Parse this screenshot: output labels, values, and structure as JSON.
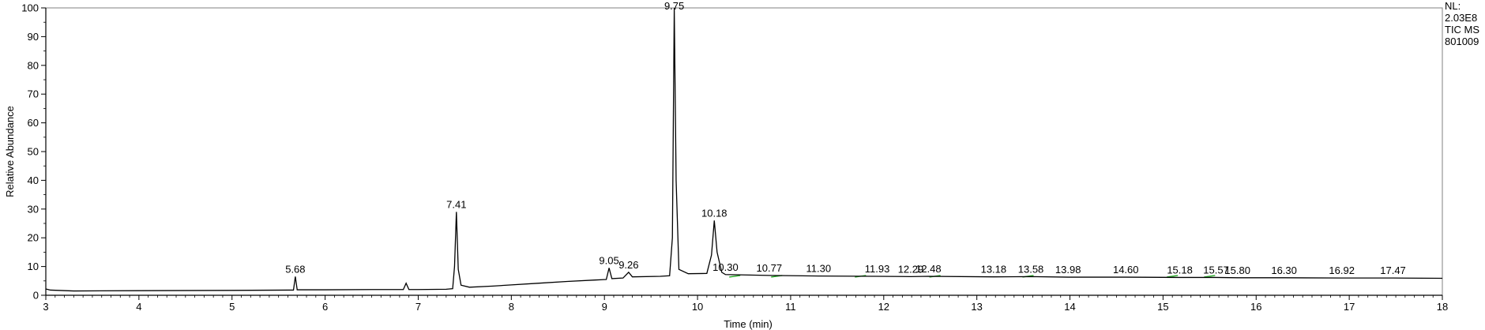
{
  "chart_data": {
    "type": "line",
    "xlabel": "Time (min)",
    "ylabel": "Relative Abundance",
    "xlim": [
      3,
      18
    ],
    "ylim": [
      0,
      100
    ],
    "x_ticks": [
      3,
      4,
      5,
      6,
      7,
      8,
      9,
      10,
      11,
      12,
      13,
      14,
      15,
      16,
      17,
      18
    ],
    "y_ticks": [
      0,
      10,
      20,
      30,
      40,
      50,
      60,
      70,
      80,
      90,
      100
    ],
    "info": [
      "NL:",
      "2.03E8",
      "TIC  MS",
      "801009"
    ],
    "series": [
      {
        "points": [
          [
            3.0,
            2.2
          ],
          [
            3.05,
            1.8
          ],
          [
            3.3,
            1.5
          ],
          [
            4.0,
            1.6
          ],
          [
            5.0,
            1.7
          ],
          [
            5.6,
            1.8
          ],
          [
            5.66,
            1.8
          ],
          [
            5.68,
            6.5
          ],
          [
            5.7,
            1.9
          ],
          [
            6.0,
            1.9
          ],
          [
            6.5,
            2.0
          ],
          [
            6.84,
            2.0
          ],
          [
            6.87,
            4.2
          ],
          [
            6.9,
            2.0
          ],
          [
            7.0,
            2.0
          ],
          [
            7.3,
            2.1
          ],
          [
            7.37,
            2.3
          ],
          [
            7.39,
            10.0
          ],
          [
            7.41,
            29.0
          ],
          [
            7.43,
            9.0
          ],
          [
            7.46,
            3.5
          ],
          [
            7.55,
            2.8
          ],
          [
            7.8,
            3.2
          ],
          [
            8.0,
            3.6
          ],
          [
            8.3,
            4.2
          ],
          [
            8.6,
            4.8
          ],
          [
            8.9,
            5.3
          ],
          [
            9.02,
            5.5
          ],
          [
            9.05,
            9.5
          ],
          [
            9.08,
            5.8
          ],
          [
            9.2,
            6.0
          ],
          [
            9.26,
            8.0
          ],
          [
            9.3,
            6.4
          ],
          [
            9.6,
            6.6
          ],
          [
            9.7,
            6.8
          ],
          [
            9.73,
            20.0
          ],
          [
            9.75,
            100.0
          ],
          [
            9.77,
            40.0
          ],
          [
            9.8,
            9.0
          ],
          [
            9.9,
            7.5
          ],
          [
            10.1,
            7.6
          ],
          [
            10.15,
            14.0
          ],
          [
            10.18,
            26.0
          ],
          [
            10.21,
            15.0
          ],
          [
            10.26,
            8.0
          ],
          [
            10.3,
            7.2
          ],
          [
            10.77,
            6.9
          ],
          [
            11.3,
            6.7
          ],
          [
            11.93,
            6.6
          ],
          [
            12.29,
            6.5
          ],
          [
            12.48,
            6.6
          ],
          [
            13.18,
            6.4
          ],
          [
            13.58,
            6.5
          ],
          [
            13.98,
            6.3
          ],
          [
            14.6,
            6.3
          ],
          [
            15.18,
            6.2
          ],
          [
            15.57,
            6.2
          ],
          [
            15.8,
            6.1
          ],
          [
            16.3,
            6.1
          ],
          [
            16.92,
            6.0
          ],
          [
            17.47,
            6.0
          ],
          [
            18.0,
            5.9
          ]
        ]
      }
    ],
    "peak_labels": [
      {
        "x": 5.68,
        "y": 6.5,
        "label": "5.68"
      },
      {
        "x": 7.41,
        "y": 29.0,
        "label": "7.41"
      },
      {
        "x": 9.05,
        "y": 9.5,
        "label": "9.05"
      },
      {
        "x": 9.26,
        "y": 8.0,
        "label": "9.26"
      },
      {
        "x": 9.75,
        "y": 100.0,
        "label": "9.75"
      },
      {
        "x": 10.18,
        "y": 26.0,
        "label": "10.18"
      },
      {
        "x": 10.3,
        "y": 7.2,
        "label": "10.30"
      },
      {
        "x": 10.77,
        "y": 6.9,
        "label": "10.77"
      },
      {
        "x": 11.3,
        "y": 6.7,
        "label": "11.30"
      },
      {
        "x": 11.93,
        "y": 6.6,
        "label": "11.93"
      },
      {
        "x": 12.29,
        "y": 6.5,
        "label": "12.29"
      },
      {
        "x": 12.48,
        "y": 6.6,
        "label": "12.48"
      },
      {
        "x": 13.18,
        "y": 6.4,
        "label": "13.18"
      },
      {
        "x": 13.58,
        "y": 6.5,
        "label": "13.58"
      },
      {
        "x": 13.98,
        "y": 6.3,
        "label": "13.98"
      },
      {
        "x": 14.6,
        "y": 6.3,
        "label": "14.60"
      },
      {
        "x": 15.18,
        "y": 6.2,
        "label": "15.18"
      },
      {
        "x": 15.57,
        "y": 6.2,
        "label": "15.57"
      },
      {
        "x": 15.8,
        "y": 6.1,
        "label": "15.80"
      },
      {
        "x": 16.3,
        "y": 6.1,
        "label": "16.30"
      },
      {
        "x": 16.92,
        "y": 6.0,
        "label": "16.92"
      },
      {
        "x": 17.47,
        "y": 6.0,
        "label": "17.47"
      }
    ],
    "integration_marks": [
      10.4,
      10.85,
      11.75,
      12.55,
      13.55,
      15.1,
      15.5
    ],
    "colors": {
      "trace": "#000000",
      "marks": "#22aa22",
      "background": "#ffffff",
      "axis": "#000000"
    }
  }
}
